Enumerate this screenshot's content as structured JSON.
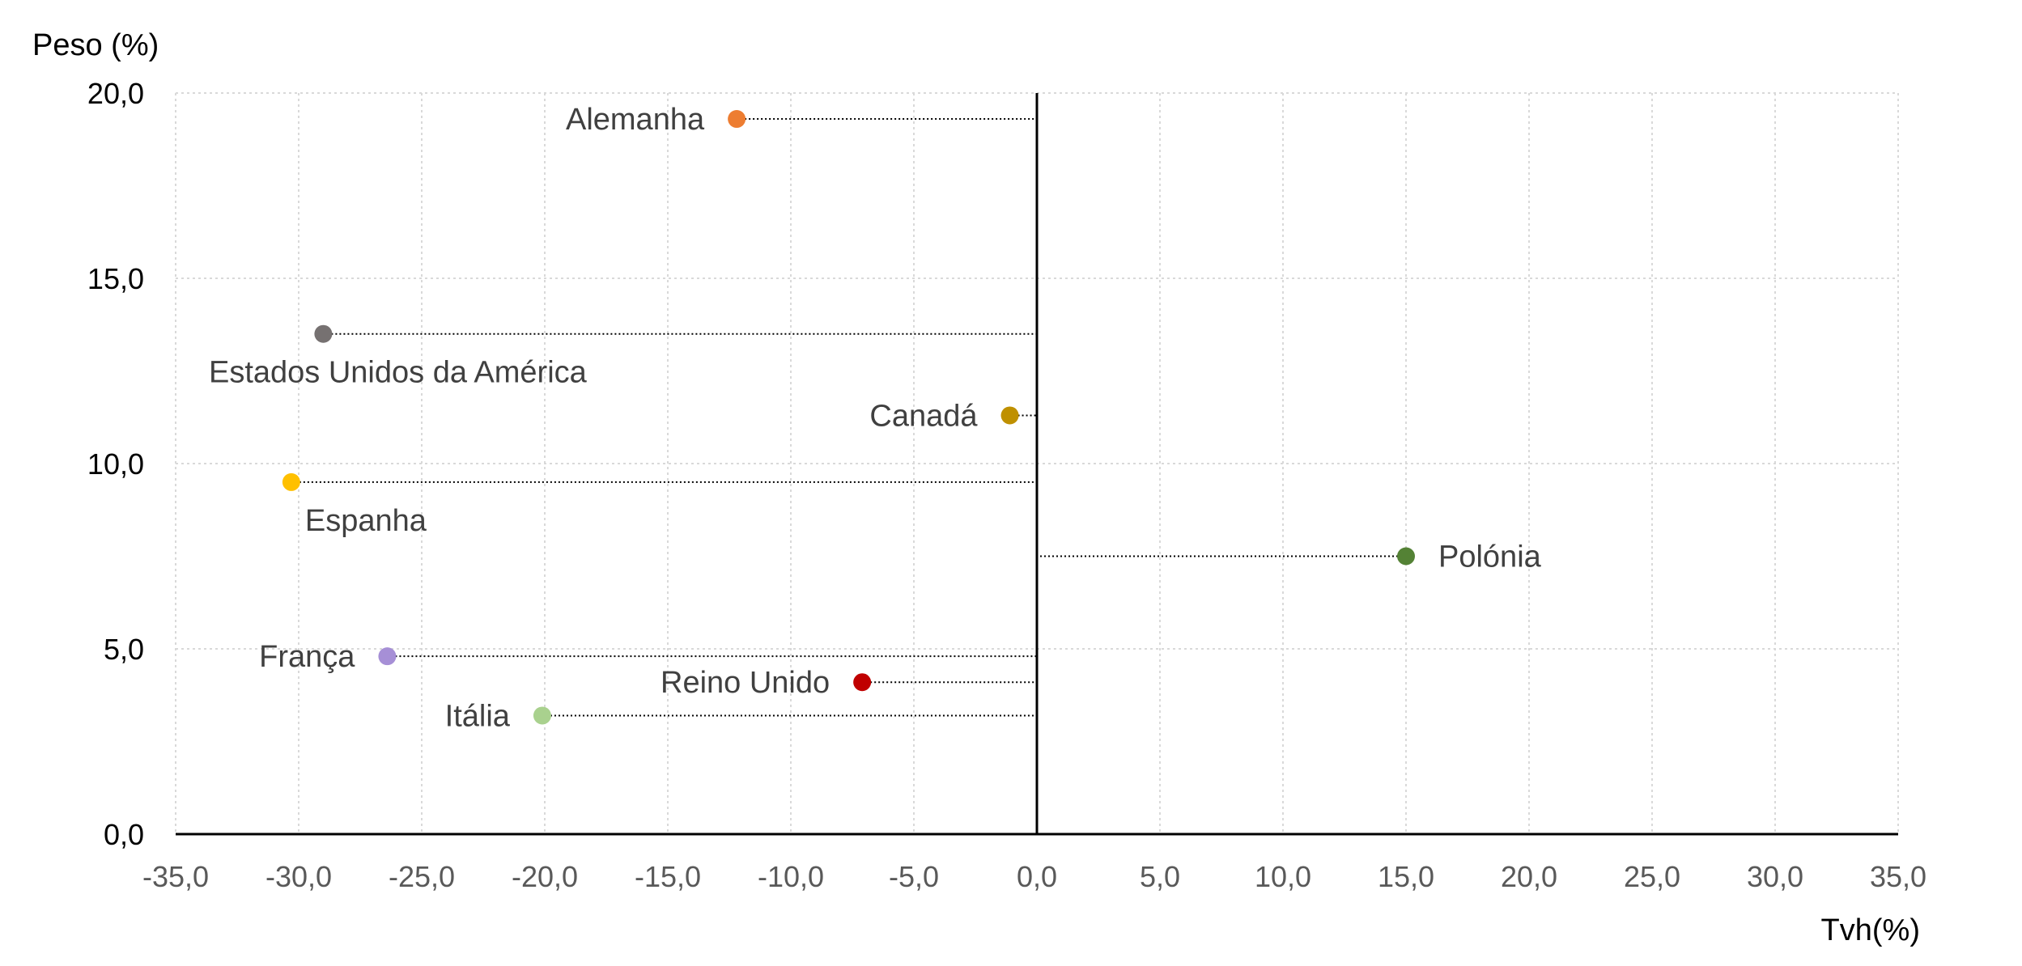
{
  "chart_data": {
    "type": "scatter",
    "title": "",
    "xlabel": "Tvh(%)",
    "ylabel": "Peso (%)",
    "xlim": [
      -35,
      35
    ],
    "ylim": [
      0,
      20
    ],
    "x_ticks": [
      "-35,0",
      "-30,0",
      "-25,0",
      "-20,0",
      "-15,0",
      "-10,0",
      "-5,0",
      "0,0",
      "5,0",
      "10,0",
      "15,0",
      "20,0",
      "25,0",
      "30,0",
      "35,0"
    ],
    "y_ticks": [
      "0,0",
      "5,0",
      "10,0",
      "15,0",
      "20,0"
    ],
    "grid": true,
    "leader_lines_to_x": 0,
    "points": [
      {
        "name": "Alemanha",
        "x": -12.2,
        "y": 19.3,
        "color": "#ED7D31",
        "label_side": "left"
      },
      {
        "name": "Estados Unidos da América",
        "x": -29.0,
        "y": 13.5,
        "color": "#767171",
        "label_side": "below"
      },
      {
        "name": "Canadá",
        "x": -1.1,
        "y": 11.3,
        "color": "#BF9000",
        "label_side": "left"
      },
      {
        "name": "Espanha",
        "x": -30.3,
        "y": 9.5,
        "color": "#FFC000",
        "label_side": "below"
      },
      {
        "name": "Polónia",
        "x": 15.0,
        "y": 7.5,
        "color": "#548235",
        "label_side": "right"
      },
      {
        "name": "França",
        "x": -26.4,
        "y": 4.8,
        "color": "#A68FD6",
        "label_side": "left"
      },
      {
        "name": "Reino Unido",
        "x": -7.1,
        "y": 4.1,
        "color": "#C00000",
        "label_side": "left"
      },
      {
        "name": "Itália",
        "x": -20.1,
        "y": 3.2,
        "color": "#A9D18E",
        "label_side": "left"
      }
    ]
  }
}
